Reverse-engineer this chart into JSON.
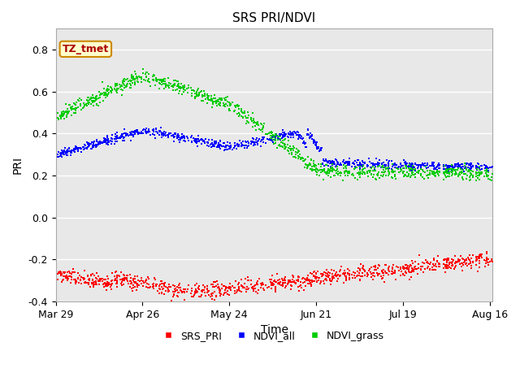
{
  "title": "SRS PRI/NDVI",
  "xlabel": "Time",
  "ylabel": "PRI",
  "annotation_text": "TZ_tmet",
  "ylim": [
    -0.4,
    0.9
  ],
  "yticks": [
    -0.4,
    -0.2,
    0.0,
    0.2,
    0.4,
    0.6,
    0.8
  ],
  "xtick_labels": [
    "Mar 29",
    "Apr 26",
    "May 24",
    "Jun 21",
    "Jul 19",
    "Aug 16"
  ],
  "xtick_days": [
    87,
    115,
    143,
    171,
    199,
    227
  ],
  "legend_labels": [
    "SRS_PRI",
    "NDVI_all",
    "NDVI_grass"
  ],
  "colors": {
    "SRS_PRI": "#ff0000",
    "NDVI_all": "#0000ff",
    "NDVI_grass": "#00cc00",
    "annotation_bg": "#ffffcc",
    "annotation_border": "#cc8800",
    "annotation_text": "#aa0000",
    "plot_bg": "#e8e8e8",
    "fig_bg": "#ffffff",
    "grid": "#ffffff"
  },
  "start_day": 87,
  "end_day": 228,
  "figsize": [
    6.4,
    4.8
  ],
  "dpi": 100
}
